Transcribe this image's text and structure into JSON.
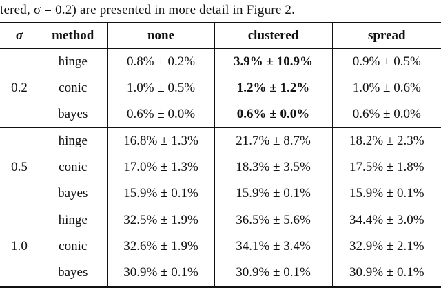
{
  "caption": "tered, σ = 0.2) are presented in more detail in Figure 2.",
  "table": {
    "headers": {
      "sigma": "σ",
      "method": "method",
      "cols": [
        "none",
        "clustered",
        "spread"
      ]
    },
    "groups": [
      {
        "sigma": "0.2",
        "rows": [
          {
            "method": "hinge",
            "none": "0.8% ± 0.2%",
            "clustered": "3.9% ± 10.9%",
            "spread": "0.9% ± 0.5%"
          },
          {
            "method": "conic",
            "none": "1.0% ± 0.5%",
            "clustered": "1.2% ± 1.2%",
            "spread": "1.0% ± 0.6%"
          },
          {
            "method": "bayes",
            "none": "0.6% ± 0.0%",
            "clustered": "0.6% ± 0.0%",
            "spread": "0.6% ± 0.0%"
          }
        ]
      },
      {
        "sigma": "0.5",
        "rows": [
          {
            "method": "hinge",
            "none": "16.8% ± 1.3%",
            "clustered": "21.7% ± 8.7%",
            "spread": "18.2% ± 2.3%"
          },
          {
            "method": "conic",
            "none": "17.0% ± 1.3%",
            "clustered": "18.3% ± 3.5%",
            "spread": "17.5% ± 1.8%"
          },
          {
            "method": "bayes",
            "none": "15.9% ± 0.1%",
            "clustered": "15.9% ± 0.1%",
            "spread": "15.9% ± 0.1%"
          }
        ]
      },
      {
        "sigma": "1.0",
        "rows": [
          {
            "method": "hinge",
            "none": "32.5% ± 1.9%",
            "clustered": "36.5% ± 5.6%",
            "spread": "34.4% ± 3.0%"
          },
          {
            "method": "conic",
            "none": "32.6% ± 1.9%",
            "clustered": "34.1% ± 3.4%",
            "spread": "32.9% ± 2.1%"
          },
          {
            "method": "bayes",
            "none": "30.9% ± 0.1%",
            "clustered": "30.9% ± 0.1%",
            "spread": "30.9% ± 0.1%"
          }
        ]
      }
    ]
  }
}
